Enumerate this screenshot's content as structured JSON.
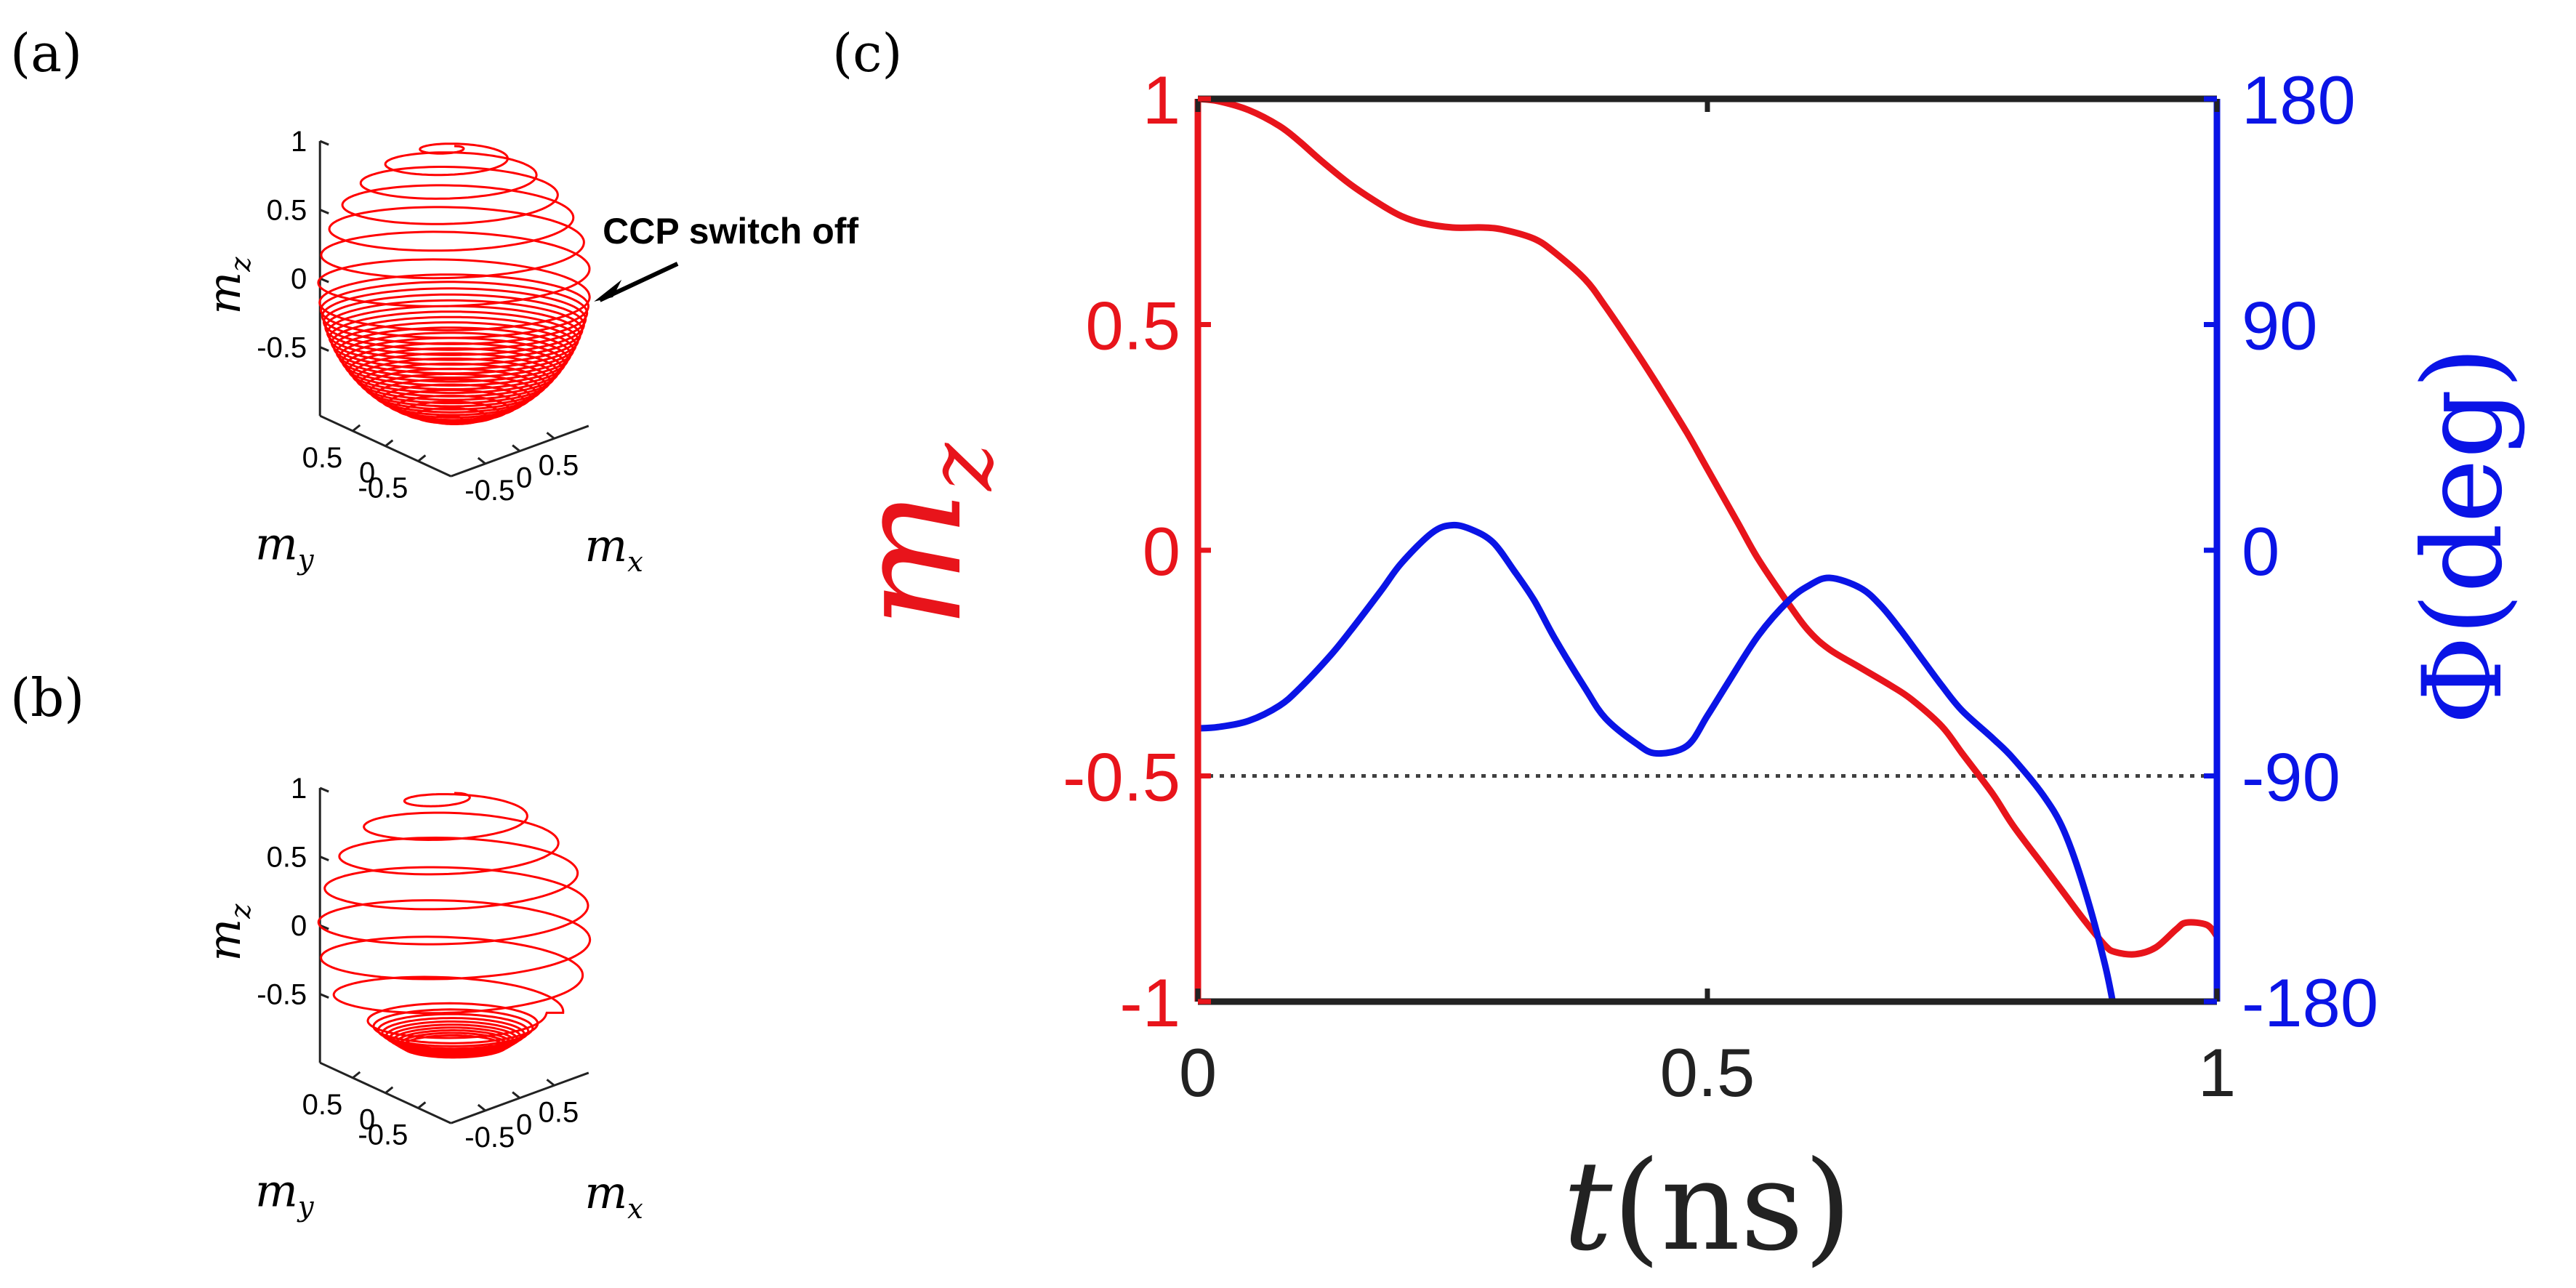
{
  "chart_data": [
    {
      "panel": "(a)",
      "type": "line",
      "projection": "3d",
      "axes": {
        "x": {
          "label": "m_x",
          "ticks": [
            "-0.5",
            "0",
            "0.5"
          ],
          "ticks_values": [
            -0.5,
            0,
            0.5
          ]
        },
        "y": {
          "label": "m_y",
          "ticks": [
            "-0.5",
            "0",
            "0.5"
          ],
          "ticks_values": [
            -0.5,
            0,
            0.5
          ]
        },
        "z": {
          "label": "m_z",
          "ticks": [
            "-0.5",
            "0",
            "0.5",
            "1"
          ],
          "ticks_values": [
            -0.5,
            0,
            0.5,
            1
          ]
        }
      },
      "annotation": "CCP switch off",
      "annotation_at_mz": -0.1,
      "series": [
        {
          "color": "#ff0000",
          "description_values": {
            "start_mz": 1,
            "switch_off_mz": -0.1,
            "end_mz": -1
          },
          "turns_upper": 7,
          "turns_lower": 26
        }
      ]
    },
    {
      "panel": "(b)",
      "type": "line",
      "projection": "3d",
      "axes": {
        "x": {
          "label": "m_x",
          "ticks": [
            "-0.5",
            "0",
            "0.5"
          ],
          "ticks_values": [
            -0.5,
            0,
            0.5
          ]
        },
        "y": {
          "label": "m_y",
          "ticks": [
            "-0.5",
            "0",
            "0.5"
          ],
          "ticks_values": [
            -0.5,
            0,
            0.5
          ]
        },
        "z": {
          "label": "m_z",
          "ticks": [
            "-0.5",
            "0",
            "0.5",
            "1"
          ],
          "ticks_values": [
            -0.5,
            0,
            0.5,
            1
          ]
        }
      },
      "series": [
        {
          "color": "#ff0000",
          "description_values": {
            "start_mz": 1,
            "end_mz": -0.85
          },
          "turns_upper": 7,
          "turns_lower": 10
        }
      ]
    },
    {
      "panel": "(c)",
      "type": "line",
      "xlabel_var": "t",
      "xlabel_unit": "(ns)",
      "ylabel_left": "m_z",
      "ylabel_right": "Φ(deg)",
      "xlim": [
        0,
        1
      ],
      "ylim_left": [
        -1,
        1
      ],
      "ylim_right": [
        -180,
        180
      ],
      "xticks": [
        "0",
        "0.5",
        "1"
      ],
      "xticks_values": [
        0,
        0.5,
        1
      ],
      "yticks_left": [
        "-1",
        "-0.5",
        "0",
        "0.5",
        "1"
      ],
      "yticks_left_values": [
        -1,
        -0.5,
        0,
        0.5,
        1
      ],
      "yticks_right": [
        "-180",
        "-90",
        "0",
        "90",
        "180"
      ],
      "yticks_right_values": [
        -180,
        -90,
        0,
        90,
        180
      ],
      "reference_line": {
        "axis": "left",
        "y": -0.5,
        "style": "dotted",
        "color": "#404040"
      },
      "colors": {
        "left": "#e8141b",
        "right": "#0a14e6",
        "frame": "#222222"
      },
      "series": [
        {
          "axis": "left",
          "color": "#e8141b",
          "x": [
            0,
            0.02,
            0.05,
            0.08,
            0.1,
            0.12,
            0.15,
            0.18,
            0.2,
            0.22,
            0.25,
            0.28,
            0.3,
            0.33,
            0.35,
            0.38,
            0.4,
            0.43,
            0.45,
            0.48,
            0.5,
            0.53,
            0.55,
            0.58,
            0.6,
            0.62,
            0.65,
            0.68,
            0.7,
            0.73,
            0.75,
            0.78,
            0.8,
            0.83,
            0.85,
            0.87,
            0.89,
            0.9,
            0.92,
            0.94,
            0.96,
            0.97,
            0.99,
            1.0
          ],
          "y": [
            1.0,
            0.995,
            0.975,
            0.94,
            0.905,
            0.865,
            0.81,
            0.765,
            0.74,
            0.725,
            0.715,
            0.715,
            0.71,
            0.69,
            0.66,
            0.6,
            0.54,
            0.44,
            0.37,
            0.26,
            0.18,
            0.06,
            -0.02,
            -0.12,
            -0.18,
            -0.22,
            -0.26,
            -0.3,
            -0.33,
            -0.39,
            -0.45,
            -0.54,
            -0.61,
            -0.7,
            -0.76,
            -0.82,
            -0.875,
            -0.89,
            -0.895,
            -0.88,
            -0.84,
            -0.825,
            -0.83,
            -0.855
          ]
        },
        {
          "axis": "right",
          "color": "#0a14e6",
          "x": [
            0,
            0.02,
            0.05,
            0.08,
            0.1,
            0.13,
            0.15,
            0.18,
            0.2,
            0.23,
            0.25,
            0.27,
            0.29,
            0.31,
            0.33,
            0.35,
            0.38,
            0.4,
            0.43,
            0.45,
            0.48,
            0.5,
            0.52,
            0.55,
            0.58,
            0.6,
            0.62,
            0.65,
            0.67,
            0.69,
            0.71,
            0.73,
            0.75,
            0.78,
            0.8,
            0.83,
            0.85,
            0.87,
            0.89,
            0.9
          ],
          "y": [
            -71,
            -70.5,
            -68,
            -62,
            -55,
            -42,
            -32,
            -16,
            -5,
            7,
            10,
            8,
            3,
            -8,
            -20,
            -35,
            -55,
            -67,
            -77,
            -81,
            -78,
            -66,
            -53,
            -34,
            -20,
            -14,
            -11,
            -15,
            -22,
            -32,
            -43,
            -54,
            -64,
            -75,
            -83,
            -98,
            -112,
            -135,
            -165,
            -185
          ]
        }
      ]
    }
  ],
  "labels": {
    "panel_a": "(a)",
    "panel_b": "(b)",
    "panel_c": "(c)"
  }
}
